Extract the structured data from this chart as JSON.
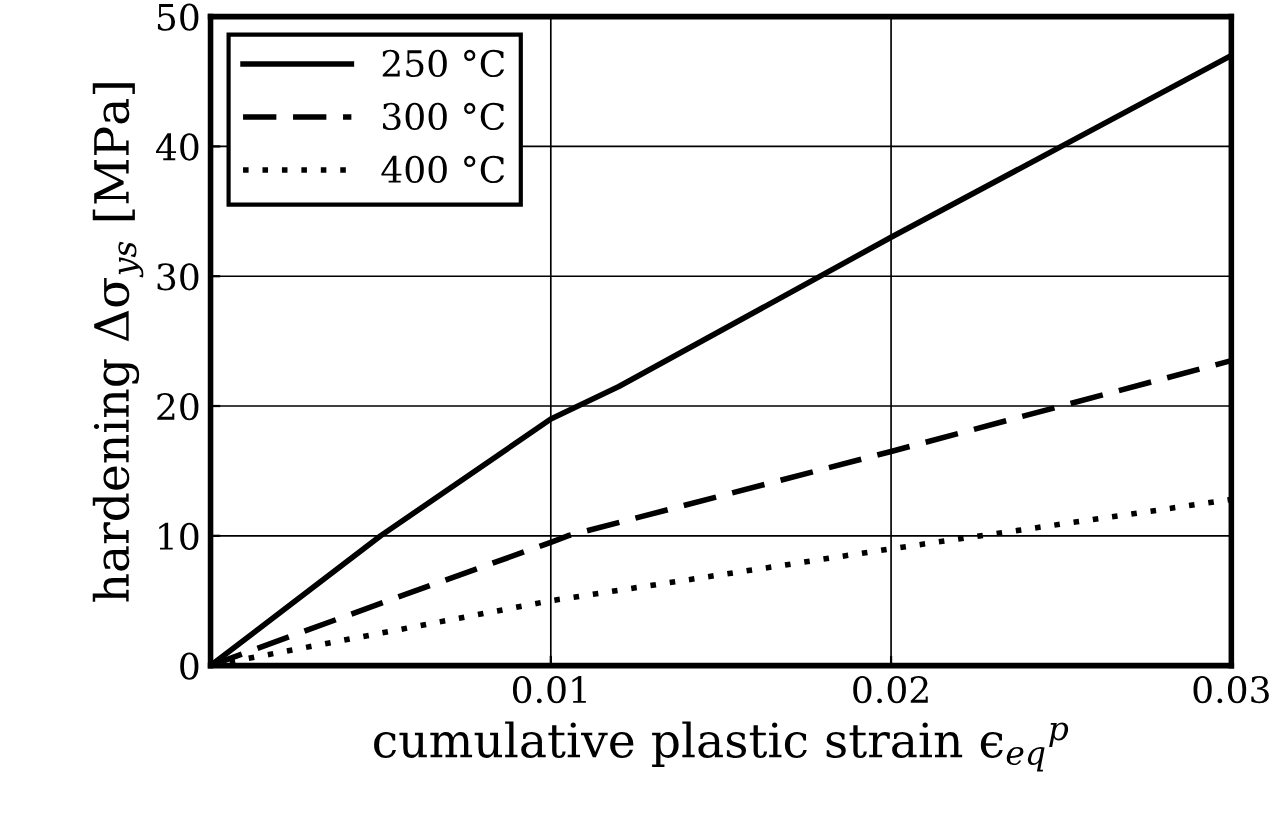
{
  "chart_data": {
    "type": "line",
    "xlabel": "cumulative plastic strain ϵ$_{eq}$$^{p}$",
    "ylabel": "hardening Δσ$_{ys}$ [MPa]",
    "xlim": [
      0,
      0.03
    ],
    "ylim": [
      0,
      50
    ],
    "xticks": [
      {
        "value": 0,
        "label": null
      },
      0.01,
      0.02,
      0.03
    ],
    "yticks": [
      0,
      10,
      20,
      30,
      40,
      50
    ],
    "grid": true,
    "legend": "top left",
    "marker": "none",
    "series": [
      {
        "name": "250 °C",
        "color": "#000000",
        "line_style": "solid",
        "x": [
          0,
          0.005,
          0.01,
          0.012,
          0.02,
          0.03
        ],
        "values": [
          0,
          10,
          19,
          21.5,
          33,
          47
        ]
      },
      {
        "name": "300 °C",
        "color": "#000000",
        "line_style": "dashed",
        "x": [
          0,
          0.005,
          0.01,
          0.0105,
          0.02,
          0.03
        ],
        "values": [
          0,
          4.8,
          9.5,
          10,
          16.5,
          23.5
        ]
      },
      {
        "name": "400 °C",
        "color": "#000000",
        "line_style": "dotted",
        "x": [
          0,
          0.01,
          0.02,
          0.03
        ],
        "values": [
          0,
          5,
          9,
          12.8
        ]
      }
    ]
  }
}
